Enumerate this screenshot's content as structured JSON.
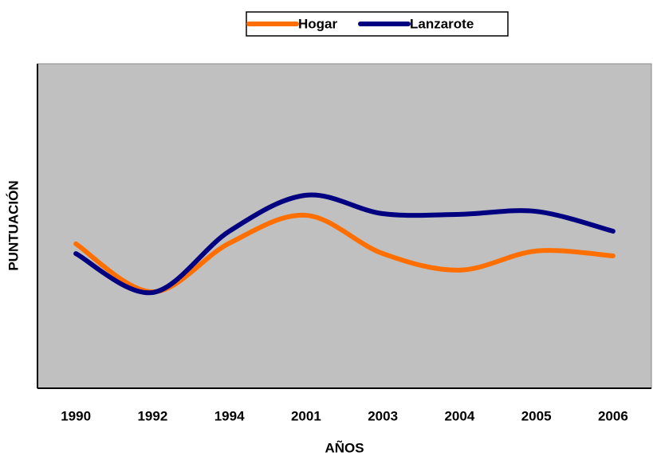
{
  "chart_data": {
    "type": "line",
    "x_label": "AÑOS",
    "y_label": "PUNTUACIÓN",
    "categories": [
      "1990",
      "1992",
      "1994",
      "2001",
      "2003",
      "2004",
      "2005",
      "2006"
    ],
    "series": [
      {
        "name": "Hogar",
        "color": "#ff6f00",
        "values": [
          44.5,
          29.7,
          44.7,
          53.3,
          41.5,
          36.4,
          42.3,
          40.8
        ]
      },
      {
        "name": "Lanzarote",
        "color": "#000080",
        "values": [
          41.5,
          29.5,
          48.4,
          59.5,
          53.8,
          53.6,
          54.5,
          48.4
        ]
      }
    ],
    "ylim": [
      0,
      100
    ],
    "grid": false,
    "legend": "top"
  }
}
